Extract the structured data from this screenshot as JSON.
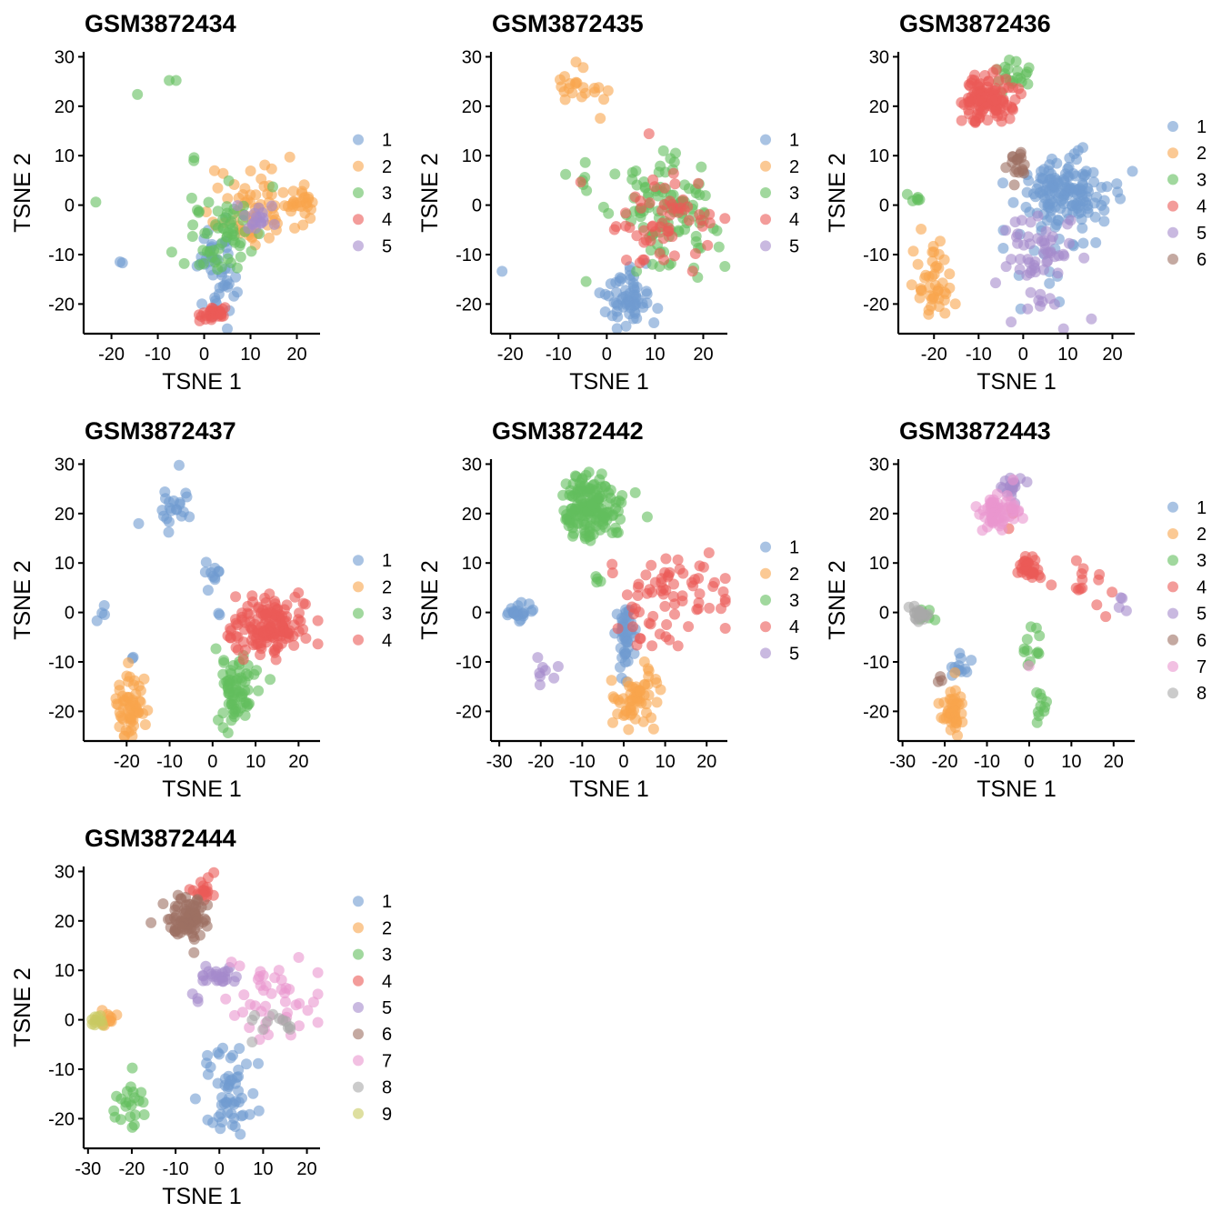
{
  "colors": {
    "1": "#6F9BD1",
    "2": "#F8A54C",
    "3": "#62BE5E",
    "4": "#EB5A56",
    "5": "#A58BCB",
    "6": "#9C7063",
    "7": "#EA96CF",
    "8": "#A8A8A8",
    "9": "#C8C960"
  },
  "chart_data": [
    {
      "type": "scatter",
      "title": "GSM3872434",
      "xlabel": "TSNE 1",
      "ylabel": "TSNE 2",
      "xlim": [
        -26,
        25
      ],
      "ylim": [
        -26,
        31
      ],
      "xticks": [
        -20,
        -10,
        0,
        10,
        20
      ],
      "yticks": [
        -20,
        -10,
        0,
        10,
        20,
        30
      ],
      "legend": [
        "1",
        "2",
        "3",
        "4",
        "5"
      ],
      "clusters": [
        {
          "c": "1",
          "x": 3,
          "y": -13,
          "sx": 2,
          "sy": 5,
          "n": 45
        },
        {
          "c": "1",
          "x": -18,
          "y": -11.5,
          "sx": 0.3,
          "sy": 0.3,
          "n": 2
        },
        {
          "c": "2",
          "x": 10,
          "y": -1,
          "sx": 5,
          "sy": 4,
          "n": 70
        },
        {
          "c": "2",
          "x": 20,
          "y": 1,
          "sx": 2,
          "sy": 1.5,
          "n": 20
        },
        {
          "c": "3",
          "x": 4,
          "y": -6,
          "sx": 4,
          "sy": 4,
          "n": 60
        },
        {
          "c": "3",
          "x": -8.5,
          "y": 24,
          "sx": 3,
          "sy": 3,
          "n": 3
        },
        {
          "c": "3",
          "x": -1.5,
          "y": 10,
          "sx": 1,
          "sy": 1.5,
          "n": 2
        },
        {
          "c": "3",
          "x": -23.5,
          "y": 1,
          "sx": 0.2,
          "sy": 0.2,
          "n": 1
        },
        {
          "c": "4",
          "x": 2.5,
          "y": -22,
          "sx": 2,
          "sy": 0.6,
          "n": 28
        },
        {
          "c": "5",
          "x": 11,
          "y": -3,
          "sx": 2,
          "sy": 1.5,
          "n": 18
        }
      ]
    },
    {
      "type": "scatter",
      "title": "GSM3872435",
      "xlabel": "TSNE 1",
      "ylabel": "TSNE 2",
      "xlim": [
        -24,
        25
      ],
      "ylim": [
        -26,
        31
      ],
      "xticks": [
        -20,
        -10,
        0,
        10,
        20
      ],
      "yticks": [
        -20,
        -10,
        0,
        10,
        20,
        30
      ],
      "legend": [
        "1",
        "2",
        "3",
        "4",
        "5"
      ],
      "clusters": [
        {
          "c": "1",
          "x": 4,
          "y": -19,
          "sx": 2.5,
          "sy": 3,
          "n": 60
        },
        {
          "c": "1",
          "x": -22,
          "y": -13.5,
          "sx": 0.2,
          "sy": 0.2,
          "n": 1
        },
        {
          "c": "2",
          "x": -6,
          "y": 23,
          "sx": 3,
          "sy": 2,
          "n": 22
        },
        {
          "c": "3",
          "x": 12,
          "y": -2,
          "sx": 5,
          "sy": 5,
          "n": 110
        },
        {
          "c": "3",
          "x": -4,
          "y": 6,
          "sx": 2,
          "sy": 2,
          "n": 6
        },
        {
          "c": "4",
          "x": 11,
          "y": -4,
          "sx": 5,
          "sy": 5,
          "n": 60
        },
        {
          "c": "4",
          "x": -5.5,
          "y": 4.5,
          "sx": 0.3,
          "sy": 0.3,
          "n": 1
        }
      ]
    },
    {
      "type": "scatter",
      "title": "GSM3872436",
      "xlabel": "TSNE 1",
      "ylabel": "TSNE 2",
      "xlim": [
        -28,
        25
      ],
      "ylim": [
        -26,
        31
      ],
      "xticks": [
        -20,
        -10,
        0,
        10,
        20
      ],
      "yticks": [
        -20,
        -10,
        0,
        10,
        20,
        30
      ],
      "legend": [
        "1",
        "2",
        "3",
        "4",
        "5",
        "6"
      ],
      "clusters": [
        {
          "c": "1",
          "x": 10,
          "y": 3,
          "sx": 5,
          "sy": 3.5,
          "n": 140
        },
        {
          "c": "1",
          "x": 5,
          "y": -9,
          "sx": 6,
          "sy": 5,
          "n": 20
        },
        {
          "c": "1",
          "x": -5.5,
          "y": 4.5,
          "sx": 0.3,
          "sy": 0.3,
          "n": 1
        },
        {
          "c": "2",
          "x": -20,
          "y": -16,
          "sx": 1.8,
          "sy": 4,
          "n": 45
        },
        {
          "c": "3",
          "x": -24,
          "y": 1.5,
          "sx": 0.8,
          "sy": 0.3,
          "n": 6
        },
        {
          "c": "3",
          "x": -3,
          "y": 26,
          "sx": 2,
          "sy": 1.5,
          "n": 20
        },
        {
          "c": "4",
          "x": -8,
          "y": 21.5,
          "sx": 3,
          "sy": 2.3,
          "n": 110
        },
        {
          "c": "5",
          "x": 4,
          "y": -11,
          "sx": 4,
          "sy": 6,
          "n": 60
        },
        {
          "c": "6",
          "x": -1.5,
          "y": 9,
          "sx": 1,
          "sy": 1.5,
          "n": 18
        }
      ]
    },
    {
      "type": "scatter",
      "title": "GSM3872437",
      "xlabel": "TSNE 1",
      "ylabel": "TSNE 2",
      "xlim": [
        -30,
        25
      ],
      "ylim": [
        -26,
        31
      ],
      "xticks": [
        -20,
        -10,
        0,
        10,
        20
      ],
      "yticks": [
        -20,
        -10,
        0,
        10,
        20,
        30
      ],
      "legend": [
        "1",
        "2",
        "3",
        "4"
      ],
      "clusters": [
        {
          "c": "1",
          "x": -9,
          "y": 21,
          "sx": 3,
          "sy": 3,
          "n": 22
        },
        {
          "c": "1",
          "x": -0.5,
          "y": 8,
          "sx": 1.5,
          "sy": 1.5,
          "n": 10
        },
        {
          "c": "1",
          "x": -26,
          "y": 0,
          "sx": 1,
          "sy": 0.8,
          "n": 4
        },
        {
          "c": "1",
          "x": 1,
          "y": -1,
          "sx": 1,
          "sy": 1,
          "n": 2
        },
        {
          "c": "1",
          "x": -18,
          "y": -9,
          "sx": 0.5,
          "sy": 0.5,
          "n": 2
        },
        {
          "c": "2",
          "x": -19,
          "y": -19,
          "sx": 1.6,
          "sy": 3,
          "n": 60
        },
        {
          "c": "3",
          "x": 5,
          "y": -15,
          "sx": 2.5,
          "sy": 4,
          "n": 70
        },
        {
          "c": "4",
          "x": 13,
          "y": -3,
          "sx": 5,
          "sy": 3,
          "n": 150
        }
      ]
    },
    {
      "type": "scatter",
      "title": "GSM3872442",
      "xlabel": "TSNE 1",
      "ylabel": "TSNE 2",
      "xlim": [
        -32,
        25
      ],
      "ylim": [
        -26,
        31
      ],
      "xticks": [
        -30,
        -20,
        -10,
        0,
        10,
        20
      ],
      "yticks": [
        -20,
        -10,
        0,
        10,
        20,
        30
      ],
      "legend": [
        "1",
        "2",
        "3",
        "4",
        "5"
      ],
      "clusters": [
        {
          "c": "1",
          "x": -26,
          "y": 0,
          "sx": 1.5,
          "sy": 0.8,
          "n": 22
        },
        {
          "c": "1",
          "x": 0.5,
          "y": -5,
          "sx": 1.2,
          "sy": 4,
          "n": 45
        },
        {
          "c": "2",
          "x": 3,
          "y": -18,
          "sx": 2.5,
          "sy": 3.5,
          "n": 60
        },
        {
          "c": "3",
          "x": -8,
          "y": 21,
          "sx": 3.5,
          "sy": 3.2,
          "n": 160
        },
        {
          "c": "3",
          "x": -5,
          "y": 6.5,
          "sx": 0.8,
          "sy": 0.5,
          "n": 4
        },
        {
          "c": "4",
          "x": 12,
          "y": 3,
          "sx": 6,
          "sy": 5,
          "n": 70
        },
        {
          "c": "4",
          "x": -3,
          "y": 9,
          "sx": 0.7,
          "sy": 0.7,
          "n": 2
        },
        {
          "c": "5",
          "x": -19,
          "y": -11,
          "sx": 1.5,
          "sy": 1.5,
          "n": 8
        }
      ]
    },
    {
      "type": "scatter",
      "title": "GSM3872443",
      "xlabel": "TSNE 1",
      "ylabel": "TSNE 2",
      "xlim": [
        -31,
        25
      ],
      "ylim": [
        -26,
        31
      ],
      "xticks": [
        -30,
        -20,
        -10,
        0,
        10,
        20
      ],
      "yticks": [
        -20,
        -10,
        0,
        10,
        20,
        30
      ],
      "legend": [
        "1",
        "2",
        "3",
        "4",
        "5",
        "6",
        "7",
        "8"
      ],
      "clusters": [
        {
          "c": "1",
          "x": -17,
          "y": -11,
          "sx": 1.5,
          "sy": 1.5,
          "n": 12
        },
        {
          "c": "2",
          "x": -18,
          "y": -19.5,
          "sx": 1.5,
          "sy": 2.5,
          "n": 45
        },
        {
          "c": "3",
          "x": -24,
          "y": 0,
          "sx": 1.2,
          "sy": 0.8,
          "n": 8
        },
        {
          "c": "3",
          "x": 1,
          "y": -6,
          "sx": 2,
          "sy": 2.5,
          "n": 12
        },
        {
          "c": "3",
          "x": 3,
          "y": -19,
          "sx": 1.5,
          "sy": 1.5,
          "n": 10
        },
        {
          "c": "4",
          "x": 0,
          "y": 9,
          "sx": 1.2,
          "sy": 1.2,
          "n": 30
        },
        {
          "c": "4",
          "x": 13,
          "y": 4,
          "sx": 5,
          "sy": 4,
          "n": 14
        },
        {
          "c": "4",
          "x": -5,
          "y": 19,
          "sx": 1,
          "sy": 1,
          "n": 3
        },
        {
          "c": "5",
          "x": -4,
          "y": 26,
          "sx": 1.5,
          "sy": 1.5,
          "n": 18
        },
        {
          "c": "5",
          "x": 22,
          "y": 1,
          "sx": 1,
          "sy": 1,
          "n": 4
        },
        {
          "c": "6",
          "x": -22,
          "y": -13.5,
          "sx": 0.4,
          "sy": 0.3,
          "n": 3
        },
        {
          "c": "7",
          "x": -7,
          "y": 20,
          "sx": 2.5,
          "sy": 1.7,
          "n": 60
        },
        {
          "c": "7",
          "x": 0,
          "y": -10.5,
          "sx": 0.5,
          "sy": 0.5,
          "n": 1
        },
        {
          "c": "8",
          "x": -26,
          "y": -0.5,
          "sx": 1.2,
          "sy": 0.8,
          "n": 18
        }
      ]
    },
    {
      "type": "scatter",
      "title": "GSM3872444",
      "xlabel": "TSNE 1",
      "ylabel": "TSNE 2",
      "xlim": [
        -31,
        23
      ],
      "ylim": [
        -26,
        31
      ],
      "xticks": [
        -30,
        -20,
        -10,
        0,
        10,
        20
      ],
      "yticks": [
        -20,
        -10,
        0,
        10,
        20,
        30
      ],
      "legend": [
        "1",
        "2",
        "3",
        "4",
        "5",
        "6",
        "7",
        "8",
        "9"
      ],
      "clusters": [
        {
          "c": "1",
          "x": 2,
          "y": -15,
          "sx": 3,
          "sy": 5,
          "n": 55
        },
        {
          "c": "2",
          "x": -25.5,
          "y": 0,
          "sx": 1.5,
          "sy": 0.8,
          "n": 12
        },
        {
          "c": "3",
          "x": -21,
          "y": -16,
          "sx": 2,
          "sy": 3.5,
          "n": 22
        },
        {
          "c": "4",
          "x": -3,
          "y": 26,
          "sx": 1.5,
          "sy": 2,
          "n": 18
        },
        {
          "c": "5",
          "x": 0,
          "y": 9,
          "sx": 2,
          "sy": 1,
          "n": 25
        },
        {
          "c": "5",
          "x": -5.5,
          "y": 5,
          "sx": 0.5,
          "sy": 1.5,
          "n": 3
        },
        {
          "c": "6",
          "x": -7,
          "y": 20.5,
          "sx": 2.5,
          "sy": 2.3,
          "n": 80
        },
        {
          "c": "7",
          "x": 12,
          "y": 3,
          "sx": 5,
          "sy": 5,
          "n": 45
        },
        {
          "c": "8",
          "x": 11,
          "y": -1,
          "sx": 3,
          "sy": 1.5,
          "n": 12
        },
        {
          "c": "9",
          "x": -28,
          "y": 0,
          "sx": 0.8,
          "sy": 0.6,
          "n": 10
        }
      ]
    }
  ]
}
